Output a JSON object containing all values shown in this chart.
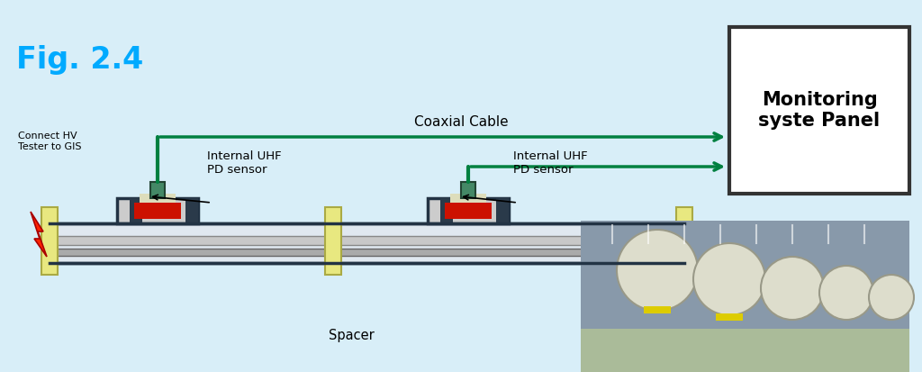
{
  "fig_label": "Fig. 2.4",
  "fig_label_color": "#00AAFF",
  "bg_color": "#D8EEF8",
  "monitoring_box_text": "Monitoring\nsyste Panel",
  "coaxial_cable_label": "Coaxial Cable",
  "spacer_label": "Spacer",
  "connect_hv_label": "Connect HV\nTester to GIS",
  "sensor_label": "Internal UHF\nPD sensor",
  "arrow_color": "#008040",
  "pipe_fill": "#E0E8F0",
  "pipe_edge": "#223344",
  "flange_fill": "#E8E880",
  "flange_edge": "#AAAA44",
  "sensor_housing_fill": "#88AABB",
  "sensor_housing_edge": "#223344",
  "sensor_red_fill": "#CC1100",
  "sensor_cream_fill": "#DDDDBB",
  "sensor_connector_fill": "#448866",
  "sensor_connector_edge": "#224433",
  "cable_green": "#008040",
  "rod_fill": "#C8C8C8",
  "rod_edge": "#888888",
  "rod2_fill": "#AAAAAA",
  "rod2_edge": "#666666",
  "bolt_fill": "#FF2200",
  "bolt_edge": "#AA0000",
  "panel_edge": "#333333",
  "panel_fill": "#FFFFFF",
  "photo_bg": "#8899AA",
  "photo_sphere_fill": "#CCCCCC",
  "photo_floor_fill": "#AABB99"
}
